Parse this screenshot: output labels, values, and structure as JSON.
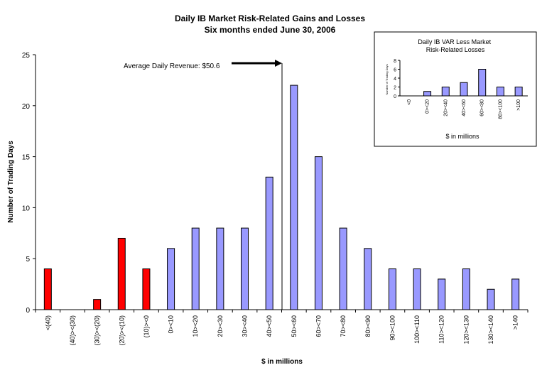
{
  "chart_data": [
    {
      "type": "bar",
      "title": "Daily IB Market Risk-Related Gains and Losses",
      "subtitle": "Six months ended June 30, 2006",
      "xlabel": "$ in millions",
      "ylabel": "Number of Trading Days",
      "ylim": [
        0,
        25
      ],
      "yticks": [
        0,
        5,
        10,
        15,
        20,
        25
      ],
      "grid": false,
      "categories": [
        "<(40)",
        "(40)><(30)",
        "(30)><(20)",
        "(20)><(10)",
        "(10)><0",
        "0><10",
        "10><20",
        "20><30",
        "30><40",
        "40><50",
        "50><60",
        "60><70",
        "70><80",
        "80><90",
        "90><100",
        "100><110",
        "110><120",
        "120><130",
        "130><140",
        ">140"
      ],
      "values": [
        4,
        0,
        1,
        7,
        4,
        6,
        8,
        8,
        8,
        13,
        22,
        15,
        8,
        6,
        4,
        4,
        3,
        4,
        2,
        3
      ],
      "colors": {
        "loss": "#ff0000",
        "gain": "#9999ff",
        "loss_count": 5
      },
      "annotation": {
        "text": "Average Daily Revenue: $50.6",
        "value": 50.6
      }
    },
    {
      "type": "bar",
      "title": "Daily IB VAR Less Market Risk-Related Losses",
      "xlabel": "$ in millions",
      "ylabel": "Number of Trading Days",
      "ylim": [
        0,
        8
      ],
      "yticks": [
        0,
        2,
        4,
        6,
        8
      ],
      "grid": false,
      "categories": [
        "<0",
        "0><20",
        "20><40",
        "40><60",
        "60><80",
        "80><100",
        ">100"
      ],
      "values": [
        0,
        1,
        2,
        3,
        6,
        2,
        2
      ],
      "colors": {
        "gain": "#9999ff"
      }
    }
  ]
}
